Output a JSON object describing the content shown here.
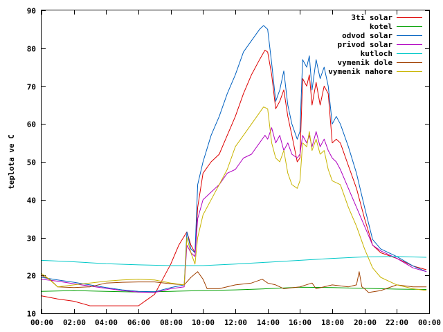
{
  "chart_data": {
    "type": "line",
    "title": "",
    "xlabel": "",
    "ylabel": "teplota ve C",
    "ylim": [
      10,
      90
    ],
    "xlim": [
      "00:00",
      "24:00"
    ],
    "grid": false,
    "legend_position": "top-right",
    "x_ticks": [
      "00:00",
      "02:00",
      "04:00",
      "06:00",
      "08:00",
      "10:00",
      "12:00",
      "14:00",
      "16:00",
      "18:00",
      "20:00",
      "22:00",
      "00:00"
    ],
    "y_ticks": [
      10,
      20,
      30,
      40,
      50,
      60,
      70,
      80,
      90
    ],
    "series": [
      {
        "name": "3ti solar",
        "color": "#dd0000",
        "points": [
          [
            "00:00",
            14.6
          ],
          [
            "01:00",
            13.8
          ],
          [
            "02:00",
            13.2
          ],
          [
            "03:00",
            12.0
          ],
          [
            "04:00",
            12.0
          ],
          [
            "05:00",
            12.0
          ],
          [
            "06:00",
            12.0
          ],
          [
            "06:30",
            13.5
          ],
          [
            "07:00",
            15.0
          ],
          [
            "07:30",
            19.0
          ],
          [
            "08:00",
            23.0
          ],
          [
            "08:30",
            28.0
          ],
          [
            "09:00",
            31.5
          ],
          [
            "09:15",
            28.0
          ],
          [
            "09:30",
            26.0
          ],
          [
            "09:40",
            38.0
          ],
          [
            "10:00",
            47.0
          ],
          [
            "10:30",
            50.0
          ],
          [
            "11:00",
            52.0
          ],
          [
            "11:30",
            57.0
          ],
          [
            "12:00",
            62.0
          ],
          [
            "12:30",
            68.0
          ],
          [
            "13:00",
            73.0
          ],
          [
            "13:30",
            77.0
          ],
          [
            "13:50",
            79.5
          ],
          [
            "14:00",
            79.0
          ],
          [
            "14:15",
            73.0
          ],
          [
            "14:30",
            64.0
          ],
          [
            "14:45",
            66.0
          ],
          [
            "15:00",
            69.0
          ],
          [
            "15:15",
            62.0
          ],
          [
            "15:30",
            57.0
          ],
          [
            "15:50",
            50.0
          ],
          [
            "16:00",
            51.0
          ],
          [
            "16:10",
            72.0
          ],
          [
            "16:25",
            70.0
          ],
          [
            "16:35",
            73.0
          ],
          [
            "16:45",
            65.0
          ],
          [
            "17:00",
            71.0
          ],
          [
            "17:15",
            65.0
          ],
          [
            "17:30",
            70.0
          ],
          [
            "17:45",
            68.0
          ],
          [
            "18:00",
            55.0
          ],
          [
            "18:15",
            56.0
          ],
          [
            "18:30",
            55.0
          ],
          [
            "19:00",
            49.0
          ],
          [
            "19:30",
            43.0
          ],
          [
            "20:00",
            35.0
          ],
          [
            "20:30",
            28.0
          ],
          [
            "21:00",
            26.0
          ],
          [
            "22:00",
            24.5
          ],
          [
            "23:00",
            22.5
          ],
          [
            "23:50",
            21.5
          ]
        ]
      },
      {
        "name": "kotel",
        "color": "#00a000",
        "points": [
          [
            "00:00",
            15.8
          ],
          [
            "02:00",
            16.0
          ],
          [
            "04:00",
            15.8
          ],
          [
            "06:00",
            15.6
          ],
          [
            "08:00",
            15.8
          ],
          [
            "10:00",
            16.0
          ],
          [
            "12:00",
            16.2
          ],
          [
            "14:00",
            16.5
          ],
          [
            "16:00",
            16.9
          ],
          [
            "18:00",
            16.8
          ],
          [
            "20:00",
            16.6
          ],
          [
            "22:00",
            16.4
          ],
          [
            "23:50",
            16.3
          ]
        ]
      },
      {
        "name": "odvod solar",
        "color": "#0060c0",
        "points": [
          [
            "00:00",
            19.5
          ],
          [
            "01:00",
            18.8
          ],
          [
            "02:00",
            18.2
          ],
          [
            "03:00",
            17.5
          ],
          [
            "04:00",
            16.8
          ],
          [
            "05:00",
            16.2
          ],
          [
            "06:00",
            15.8
          ],
          [
            "07:00",
            15.7
          ],
          [
            "08:00",
            16.8
          ],
          [
            "08:50",
            17.5
          ],
          [
            "09:00",
            31.5
          ],
          [
            "09:15",
            27.0
          ],
          [
            "09:30",
            26.0
          ],
          [
            "09:40",
            44.0
          ],
          [
            "10:00",
            50.0
          ],
          [
            "10:30",
            57.0
          ],
          [
            "11:00",
            62.0
          ],
          [
            "11:30",
            68.0
          ],
          [
            "12:00",
            73.0
          ],
          [
            "12:30",
            79.0
          ],
          [
            "13:00",
            82.0
          ],
          [
            "13:30",
            85.0
          ],
          [
            "13:45",
            86.0
          ],
          [
            "14:00",
            85.0
          ],
          [
            "14:15",
            76.0
          ],
          [
            "14:30",
            66.0
          ],
          [
            "14:45",
            69.0
          ],
          [
            "15:00",
            74.0
          ],
          [
            "15:15",
            65.0
          ],
          [
            "15:30",
            60.0
          ],
          [
            "15:50",
            56.0
          ],
          [
            "16:00",
            58.0
          ],
          [
            "16:10",
            77.0
          ],
          [
            "16:25",
            75.0
          ],
          [
            "16:35",
            78.0
          ],
          [
            "16:45",
            69.0
          ],
          [
            "17:00",
            77.0
          ],
          [
            "17:15",
            72.0
          ],
          [
            "17:30",
            75.0
          ],
          [
            "17:45",
            70.0
          ],
          [
            "18:00",
            60.0
          ],
          [
            "18:15",
            62.0
          ],
          [
            "18:30",
            60.0
          ],
          [
            "19:00",
            54.0
          ],
          [
            "19:30",
            47.0
          ],
          [
            "20:00",
            38.0
          ],
          [
            "20:30",
            29.5
          ],
          [
            "21:00",
            27.0
          ],
          [
            "22:00",
            25.0
          ],
          [
            "23:00",
            22.5
          ],
          [
            "23:50",
            21.0
          ]
        ]
      },
      {
        "name": "privod solar",
        "color": "#b000c0",
        "points": [
          [
            "00:00",
            19.0
          ],
          [
            "01:00",
            18.5
          ],
          [
            "02:00",
            17.8
          ],
          [
            "03:00",
            17.2
          ],
          [
            "04:00",
            16.6
          ],
          [
            "05:00",
            16.0
          ],
          [
            "06:00",
            15.6
          ],
          [
            "07:00",
            15.5
          ],
          [
            "08:00",
            16.5
          ],
          [
            "08:50",
            17.0
          ],
          [
            "09:00",
            28.0
          ],
          [
            "09:15",
            26.0
          ],
          [
            "09:30",
            25.0
          ],
          [
            "09:40",
            35.0
          ],
          [
            "10:00",
            40.0
          ],
          [
            "10:30",
            42.0
          ],
          [
            "11:00",
            44.0
          ],
          [
            "11:30",
            47.0
          ],
          [
            "12:00",
            48.0
          ],
          [
            "12:30",
            51.0
          ],
          [
            "13:00",
            52.0
          ],
          [
            "13:30",
            55.0
          ],
          [
            "13:50",
            57.0
          ],
          [
            "14:00",
            56.0
          ],
          [
            "14:15",
            59.0
          ],
          [
            "14:30",
            55.0
          ],
          [
            "14:45",
            57.0
          ],
          [
            "15:00",
            53.0
          ],
          [
            "15:15",
            55.0
          ],
          [
            "15:30",
            52.0
          ],
          [
            "15:50",
            51.0
          ],
          [
            "16:00",
            52.0
          ],
          [
            "16:10",
            57.0
          ],
          [
            "16:25",
            55.0
          ],
          [
            "16:35",
            57.0
          ],
          [
            "16:45",
            54.0
          ],
          [
            "17:00",
            58.0
          ],
          [
            "17:15",
            54.0
          ],
          [
            "17:30",
            56.0
          ],
          [
            "17:45",
            53.0
          ],
          [
            "18:00",
            51.0
          ],
          [
            "18:15",
            50.0
          ],
          [
            "18:30",
            48.0
          ],
          [
            "19:00",
            43.0
          ],
          [
            "19:30",
            38.0
          ],
          [
            "20:00",
            33.0
          ],
          [
            "20:30",
            28.0
          ],
          [
            "21:00",
            26.5
          ],
          [
            "22:00",
            24.5
          ],
          [
            "23:00",
            22.0
          ],
          [
            "23:50",
            21.0
          ]
        ]
      },
      {
        "name": "kutloch",
        "color": "#00c8c8",
        "points": [
          [
            "00:00",
            24.0
          ],
          [
            "02:00",
            23.6
          ],
          [
            "04:00",
            23.1
          ],
          [
            "06:00",
            22.8
          ],
          [
            "08:00",
            22.6
          ],
          [
            "10:00",
            22.6
          ],
          [
            "12:00",
            23.0
          ],
          [
            "14:00",
            23.5
          ],
          [
            "16:00",
            24.0
          ],
          [
            "18:00",
            24.5
          ],
          [
            "20:00",
            24.9
          ],
          [
            "22:00",
            25.0
          ],
          [
            "23:50",
            24.8
          ]
        ]
      },
      {
        "name": "vymenik dole",
        "color": "#a04000",
        "points": [
          [
            "00:00",
            20.0
          ],
          [
            "00:30",
            19.0
          ],
          [
            "01:00",
            17.0
          ],
          [
            "02:00",
            16.8
          ],
          [
            "03:00",
            17.0
          ],
          [
            "04:00",
            18.0
          ],
          [
            "05:00",
            18.2
          ],
          [
            "06:00",
            18.3
          ],
          [
            "07:00",
            18.3
          ],
          [
            "08:00",
            17.8
          ],
          [
            "08:50",
            17.5
          ],
          [
            "09:15",
            19.5
          ],
          [
            "09:40",
            21.0
          ],
          [
            "10:00",
            19.0
          ],
          [
            "10:15",
            16.5
          ],
          [
            "11:00",
            16.5
          ],
          [
            "12:00",
            17.5
          ],
          [
            "13:00",
            18.0
          ],
          [
            "13:40",
            19.0
          ],
          [
            "14:00",
            18.0
          ],
          [
            "14:30",
            17.5
          ],
          [
            "15:00",
            16.5
          ],
          [
            "16:00",
            17.0
          ],
          [
            "16:45",
            18.0
          ],
          [
            "17:00",
            16.5
          ],
          [
            "18:00",
            17.5
          ],
          [
            "19:00",
            17.0
          ],
          [
            "19:30",
            17.5
          ],
          [
            "19:40",
            21.0
          ],
          [
            "19:50",
            17.0
          ],
          [
            "20:00",
            16.5
          ],
          [
            "20:15",
            15.5
          ],
          [
            "21:00",
            16.0
          ],
          [
            "22:00",
            17.5
          ],
          [
            "23:00",
            17.0
          ],
          [
            "23:50",
            17.0
          ]
        ]
      },
      {
        "name": "vymenik nahore",
        "color": "#c8b400",
        "points": [
          [
            "00:00",
            20.5
          ],
          [
            "00:20",
            19.5
          ],
          [
            "01:00",
            17.0
          ],
          [
            "02:00",
            17.5
          ],
          [
            "03:00",
            18.0
          ],
          [
            "04:00",
            18.5
          ],
          [
            "05:00",
            18.8
          ],
          [
            "06:00",
            19.0
          ],
          [
            "07:00",
            18.8
          ],
          [
            "08:00",
            18.0
          ],
          [
            "08:50",
            17.5
          ],
          [
            "09:00",
            30.0
          ],
          [
            "09:15",
            26.0
          ],
          [
            "09:30",
            23.0
          ],
          [
            "09:40",
            30.0
          ],
          [
            "10:00",
            36.0
          ],
          [
            "10:30",
            40.0
          ],
          [
            "11:00",
            44.0
          ],
          [
            "11:30",
            48.0
          ],
          [
            "12:00",
            54.0
          ],
          [
            "12:30",
            57.0
          ],
          [
            "13:00",
            60.0
          ],
          [
            "13:30",
            63.0
          ],
          [
            "13:45",
            64.5
          ],
          [
            "14:00",
            64.0
          ],
          [
            "14:15",
            55.0
          ],
          [
            "14:30",
            51.0
          ],
          [
            "14:45",
            50.0
          ],
          [
            "15:00",
            53.0
          ],
          [
            "15:15",
            47.0
          ],
          [
            "15:30",
            44.0
          ],
          [
            "15:50",
            43.0
          ],
          [
            "16:00",
            45.0
          ],
          [
            "16:10",
            55.0
          ],
          [
            "16:25",
            54.0
          ],
          [
            "16:35",
            58.0
          ],
          [
            "16:45",
            53.0
          ],
          [
            "17:00",
            56.0
          ],
          [
            "17:15",
            52.0
          ],
          [
            "17:30",
            53.0
          ],
          [
            "17:45",
            48.0
          ],
          [
            "18:00",
            45.0
          ],
          [
            "18:30",
            44.0
          ],
          [
            "19:00",
            38.0
          ],
          [
            "19:30",
            33.0
          ],
          [
            "20:00",
            27.0
          ],
          [
            "20:30",
            22.0
          ],
          [
            "21:00",
            19.5
          ],
          [
            "22:00",
            17.5
          ],
          [
            "23:00",
            16.5
          ],
          [
            "23:50",
            16.0
          ]
        ]
      }
    ]
  }
}
